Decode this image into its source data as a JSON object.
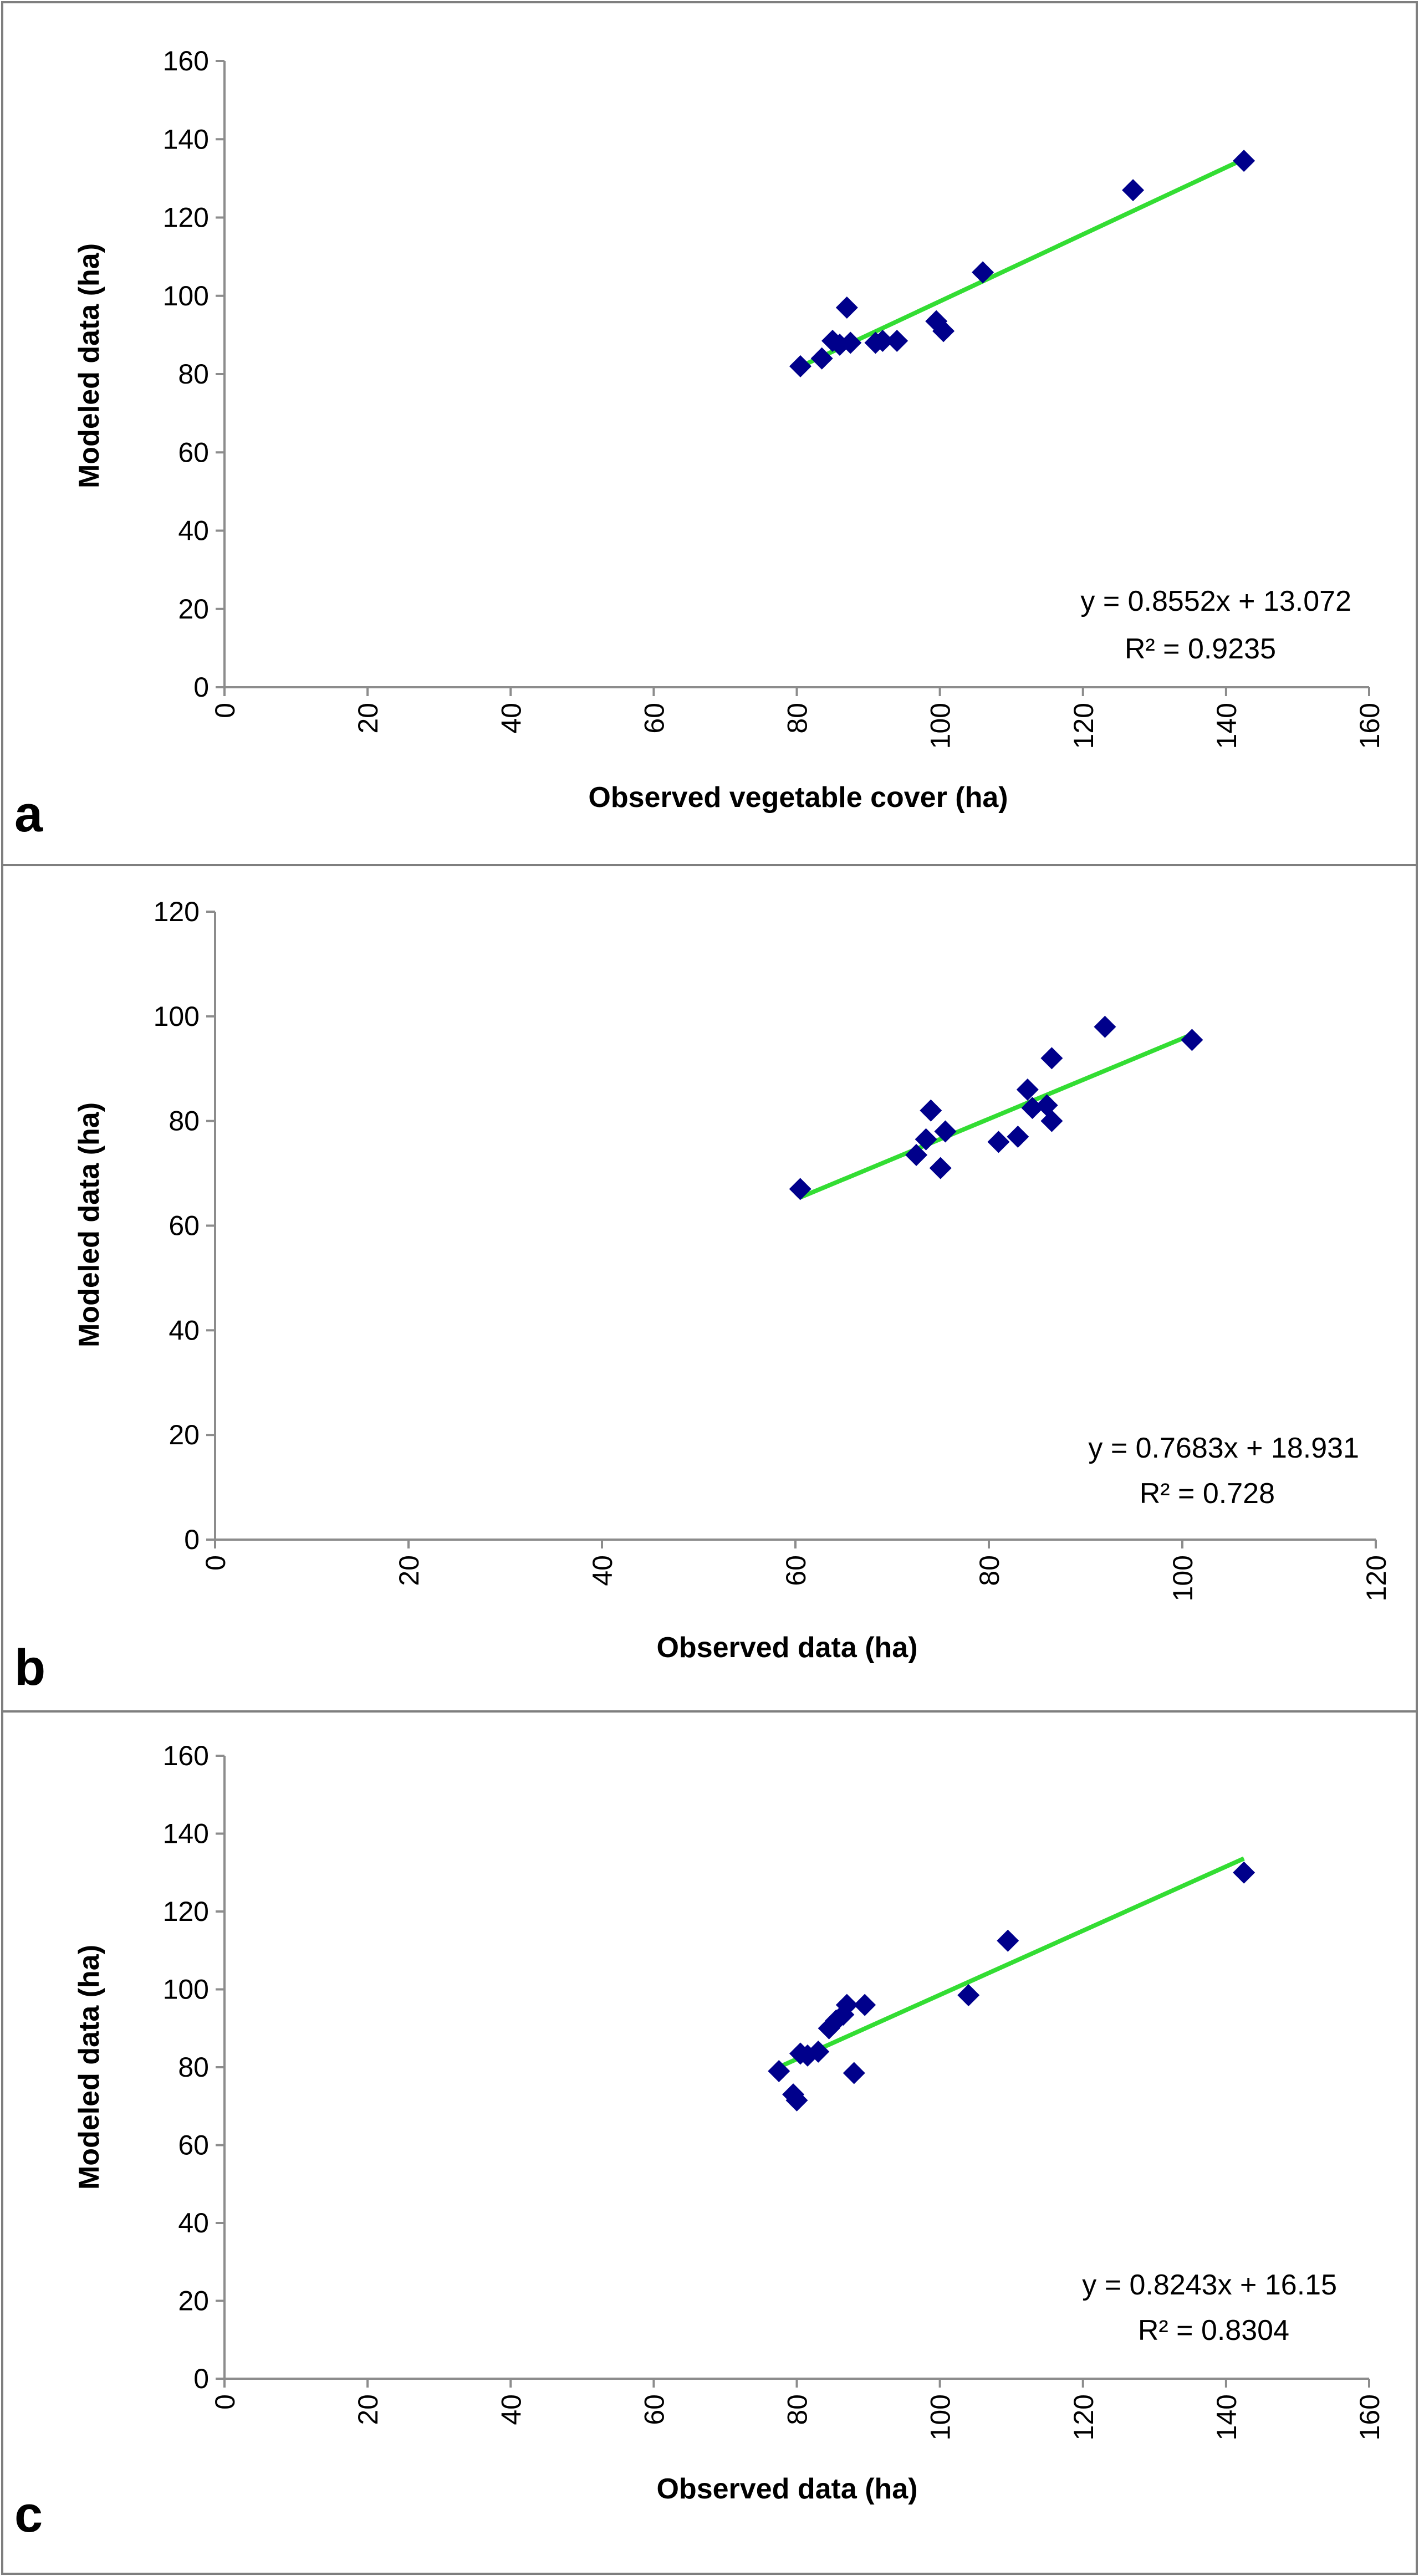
{
  "colors": {
    "marker": "#00008b",
    "trendline": "#33dd33",
    "frame": "#7f7f7f",
    "axis": "#8c8c8c"
  },
  "chart_data": [
    {
      "type": "scatter",
      "panel_label": "a",
      "xlabel": "Observed vegetable cover (ha)",
      "ylabel": "Modeled data (ha)",
      "xlim": [
        0,
        160
      ],
      "ylim": [
        0,
        160
      ],
      "xticks": [
        0,
        20,
        40,
        60,
        80,
        100,
        120,
        140,
        160
      ],
      "yticks": [
        0,
        20,
        40,
        60,
        80,
        100,
        120,
        140,
        160
      ],
      "x": [
        80.5,
        83.5,
        85,
        86,
        87,
        87.5,
        91,
        92,
        94,
        99.5,
        100.5,
        106,
        127,
        142.5
      ],
      "y": [
        82,
        84,
        88.5,
        87.5,
        97,
        88,
        88,
        88.5,
        88.5,
        93.5,
        91,
        106,
        127,
        134.5
      ],
      "trendline": {
        "slope": 0.8552,
        "intercept": 13.072,
        "x_range": [
          80.5,
          142.5
        ]
      },
      "equation": "y = 0.8552x + 13.072",
      "r2": "R² = 0.9235",
      "grid": false,
      "legend": "none"
    },
    {
      "type": "scatter",
      "panel_label": "b",
      "xlabel": "Observed data (ha)",
      "ylabel": "Modeled data (ha)",
      "xlim": [
        0,
        120
      ],
      "ylim": [
        0,
        120
      ],
      "xticks": [
        0,
        20,
        40,
        60,
        80,
        100,
        120
      ],
      "yticks": [
        0,
        20,
        40,
        60,
        80,
        100,
        120
      ],
      "x": [
        60.5,
        72.5,
        73.5,
        74,
        75,
        75.5,
        81,
        83,
        84,
        84.5,
        86,
        86.5,
        86.5,
        92,
        101
      ],
      "y": [
        67,
        73.5,
        76.5,
        82,
        71,
        78,
        76,
        77,
        86,
        82.5,
        83,
        80,
        92,
        98,
        95.5
      ],
      "trendline": {
        "slope": 0.7683,
        "intercept": 18.931,
        "x_range": [
          60.5,
          101
        ]
      },
      "equation": "y = 0.7683x + 18.931",
      "r2": "R² = 0.728",
      "grid": false,
      "legend": "none"
    },
    {
      "type": "scatter",
      "panel_label": "c",
      "xlabel": "Observed data (ha)",
      "ylabel": "Modeled data (ha)",
      "xlim": [
        0,
        160
      ],
      "ylim": [
        0,
        160
      ],
      "xticks": [
        0,
        20,
        40,
        60,
        80,
        100,
        120,
        140,
        160
      ],
      "yticks": [
        0,
        20,
        40,
        60,
        80,
        100,
        120,
        140,
        160
      ],
      "x": [
        77.5,
        79.5,
        80,
        80.5,
        81.5,
        83,
        84.5,
        85.5,
        86.5,
        87,
        88,
        89.5,
        104,
        109.5,
        142.5
      ],
      "y": [
        79,
        73,
        71.5,
        83.5,
        83,
        84,
        90,
        92,
        93.5,
        96,
        78.5,
        96,
        98.5,
        112.5,
        130
      ],
      "trendline": {
        "slope": 0.8243,
        "intercept": 16.15,
        "x_range": [
          77.5,
          142.5
        ]
      },
      "equation": "y = 0.8243x + 16.15",
      "r2": "R² = 0.8304",
      "grid": false,
      "legend": "none"
    }
  ]
}
